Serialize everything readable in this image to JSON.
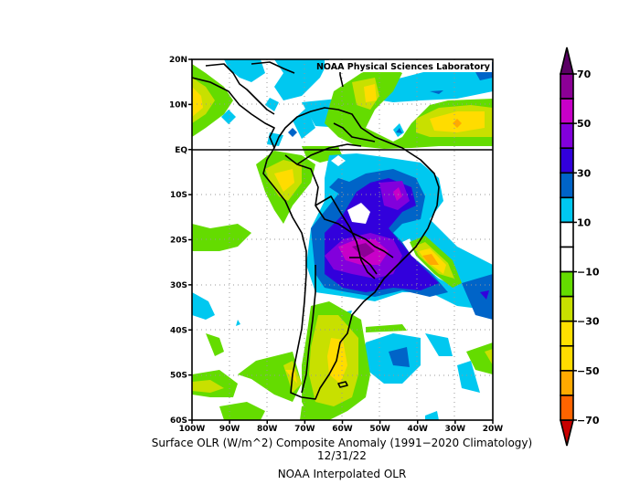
{
  "title": {
    "main": "Surface OLR (W/m^2) Composite Anomaly (1991−2020 Climatology)",
    "date": "12/31/22",
    "source": "NOAA Interpolated OLR",
    "credit": "NOAA Physical Sciences Laboratory"
  },
  "map": {
    "lon_range": [
      -100,
      -20
    ],
    "lat_range": [
      -60,
      20
    ],
    "lon_ticks": [
      "100W",
      "90W",
      "80W",
      "70W",
      "60W",
      "50W",
      "40W",
      "30W",
      "20W"
    ],
    "lat_ticks": [
      "20N",
      "10N",
      "EQ",
      "10S",
      "20S",
      "30S",
      "40S",
      "50S",
      "60S"
    ],
    "grid": "dotted",
    "equator_line": true
  },
  "colorbar": {
    "levels": [
      -70,
      -60,
      -50,
      -40,
      -30,
      -20,
      -10,
      0,
      10,
      20,
      30,
      40,
      50,
      60,
      70
    ],
    "tick_labels": [
      "70",
      "50",
      "30",
      "10",
      "−10",
      "−30",
      "−50",
      "−70"
    ],
    "colors": [
      "#c80000",
      "#ff6400",
      "#ffaa00",
      "#ffdc00",
      "#ffe000",
      "#c8e000",
      "#64dc00",
      "#ffffff",
      "#ffffff",
      "#00c8f0",
      "#0064c8",
      "#3200dc",
      "#8200dc",
      "#c800c8",
      "#8c0096",
      "#5a0064"
    ]
  }
}
